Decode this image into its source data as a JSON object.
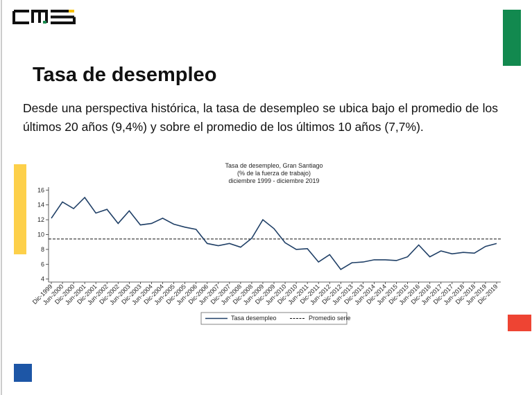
{
  "header": {
    "title": "Tasa de desempleo"
  },
  "body": {
    "text": "Desde una perspectiva histórica, la tasa de desempleo se ubica bajo el promedio de los últimos 20 años (9,4%) y sobre el promedio de los últimos 10 años (7,7%)."
  },
  "chart_data": {
    "type": "line",
    "title": "Tasa de desempleo, Gran Santiago",
    "subtitle": [
      "(% de la fuerza de trabajo)",
      "diciembre 1999 - diciembre 2019"
    ],
    "categories": [
      "Dic-1999",
      "Jun-2000",
      "Dic-2000",
      "Jun-2001",
      "Dic-2001",
      "Jun-2002",
      "Dic-2002",
      "Jun-2003",
      "Dic-2003",
      "Jun-2004",
      "Dic-2004",
      "Jun-2005",
      "Dic-2005",
      "Jun-2006",
      "Dic-2006",
      "Jun-2007",
      "Dic-2007",
      "Jun-2008",
      "Dic-2008",
      "Jun-2009",
      "Dic-2009",
      "Jun-2010",
      "Dic-2010",
      "Jun-2011",
      "Dic-2011",
      "Jun-2012",
      "Dic-2012",
      "Jun-2013",
      "Dic-2013",
      "Jun-2014",
      "Dic-2014",
      "Jun-2015",
      "Dic-2015",
      "Jun-2016",
      "Dic-2016",
      "Jun-2017",
      "Dic-2017",
      "Jun-2018",
      "Dic-2018",
      "Jun-2019",
      "Dic-2019"
    ],
    "series": [
      {
        "name": "Tasa desempleo",
        "color": "#1f3f66",
        "values": [
          12.2,
          14.4,
          13.5,
          15.0,
          12.9,
          13.4,
          11.5,
          13.2,
          11.3,
          11.5,
          12.2,
          11.4,
          11.0,
          10.7,
          8.8,
          8.5,
          8.8,
          8.3,
          9.5,
          12.0,
          10.8,
          8.9,
          8.0,
          8.1,
          6.3,
          7.3,
          5.3,
          6.2,
          6.3,
          6.6,
          6.6,
          6.5,
          7.0,
          8.6,
          7.0,
          7.8,
          7.4,
          7.6,
          7.5,
          8.4,
          8.8
        ]
      }
    ],
    "reference_line": {
      "value": 9.4,
      "label": "Promedio serie"
    },
    "ylim": [
      3.6,
      16.4
    ],
    "yticks": [
      4,
      6,
      8,
      10,
      12,
      14,
      16
    ]
  }
}
